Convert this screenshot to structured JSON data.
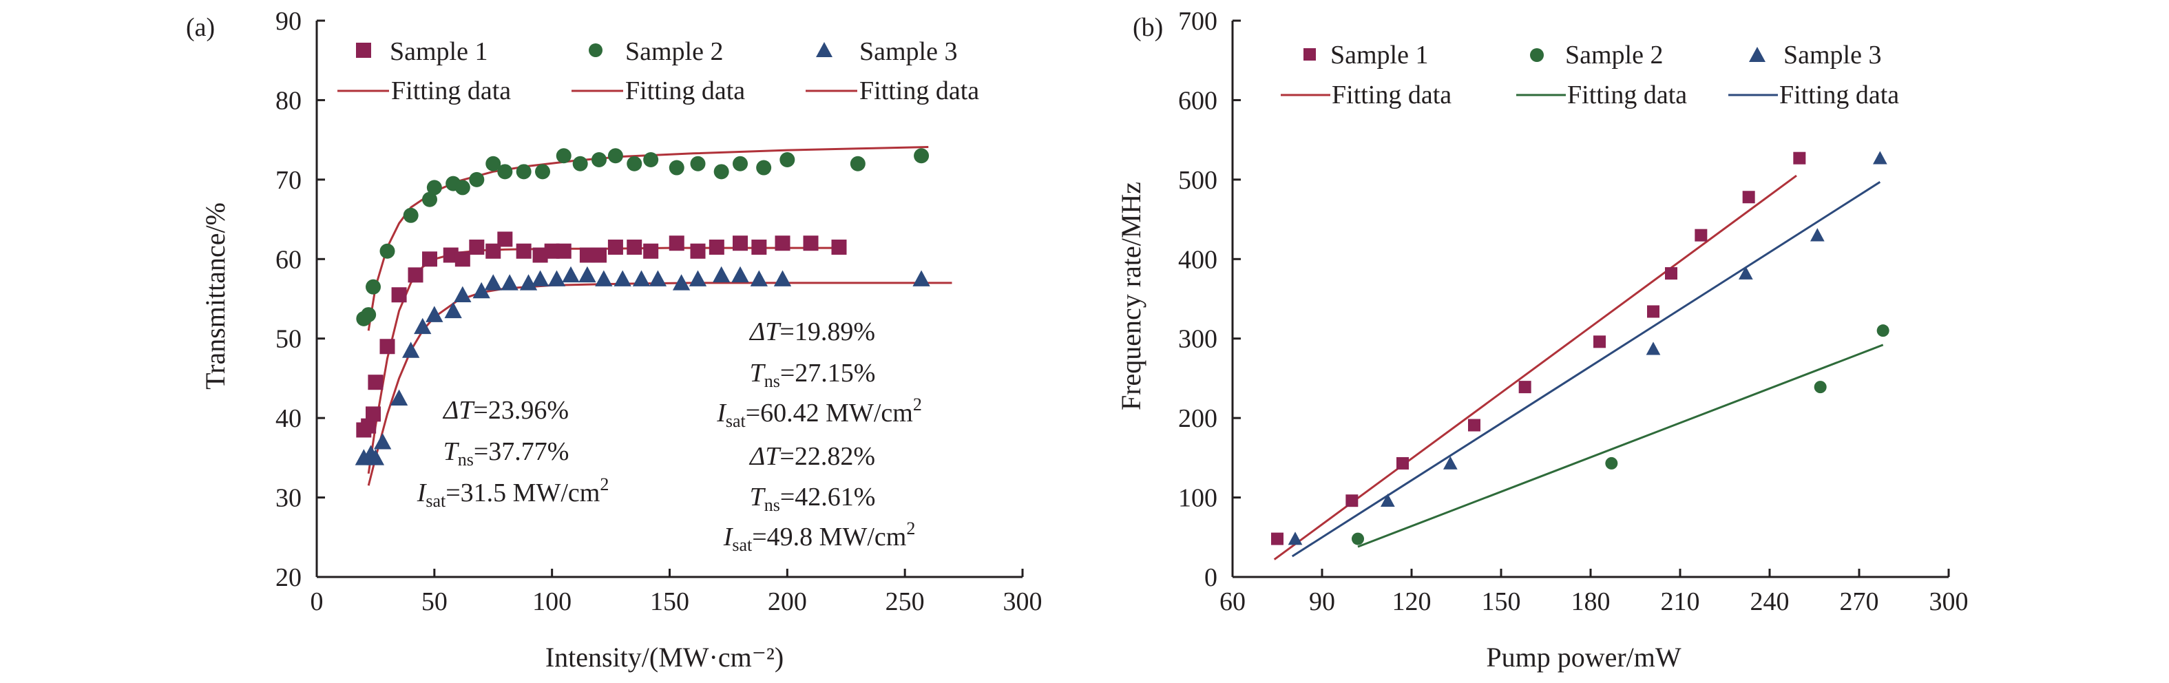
{
  "colors": {
    "axis": "#231f20",
    "sample1": "#8b2252",
    "sample2": "#2e6b3a",
    "sample3": "#2c4a7c",
    "fit_red": "#b0323a",
    "fit_green": "#2e6b3a",
    "fit_blue": "#2c4a7c"
  },
  "chart_data": [
    {
      "panel_label": "(a)",
      "type": "scatter",
      "xlabel": "Intensity/(MW·cm⁻²)",
      "ylabel": "Transmittance/%",
      "xlim": [
        0,
        300
      ],
      "ylim": [
        20,
        90
      ],
      "xticks": [
        0,
        50,
        100,
        150,
        200,
        250,
        300
      ],
      "yticks": [
        20,
        30,
        40,
        50,
        60,
        70,
        80,
        90
      ],
      "grid": false,
      "legend_position": "top",
      "legend": [
        {
          "label": "Sample 1",
          "marker": "square",
          "color": "sample1"
        },
        {
          "label": "Sample 2",
          "marker": "circle",
          "color": "sample2"
        },
        {
          "label": "Sample 3",
          "marker": "triangle",
          "color": "sample3"
        },
        {
          "label": "Fitting data",
          "marker": "line",
          "color": "fit_red"
        },
        {
          "label": "Fitting data",
          "marker": "line",
          "color": "fit_red"
        },
        {
          "label": "Fitting data",
          "marker": "line",
          "color": "fit_red"
        }
      ],
      "series": [
        {
          "name": "Sample 1",
          "marker": "square",
          "color": "sample1",
          "x": [
            20,
            22,
            24,
            25,
            30,
            35,
            42,
            48,
            57,
            62,
            68,
            75,
            80,
            88,
            95,
            100,
            105,
            115,
            120,
            127,
            135,
            142,
            153,
            162,
            170,
            180,
            188,
            198,
            210,
            222
          ],
          "y": [
            38.5,
            39,
            40.5,
            44.5,
            49,
            55.5,
            58,
            60,
            60.5,
            60,
            61.5,
            61,
            62.5,
            61,
            60.5,
            61,
            61,
            60.5,
            60.5,
            61.5,
            61.5,
            61,
            62,
            61,
            61.5,
            62,
            61.5,
            62,
            62,
            61.5
          ]
        },
        {
          "name": "Sample 2",
          "marker": "circle",
          "color": "sample2",
          "x": [
            20,
            22,
            24,
            30,
            40,
            48,
            50,
            58,
            62,
            68,
            75,
            80,
            88,
            96,
            105,
            112,
            120,
            127,
            135,
            142,
            153,
            162,
            172,
            180,
            190,
            200,
            230,
            257
          ],
          "y": [
            52.5,
            53,
            56.5,
            61,
            65.5,
            67.5,
            69,
            69.5,
            69,
            70,
            72,
            71,
            71,
            71,
            73,
            72,
            72.5,
            73,
            72,
            72.5,
            71.5,
            72,
            71,
            72,
            71.5,
            72.5,
            72,
            73
          ]
        },
        {
          "name": "Sample 3",
          "marker": "triangle",
          "color": "sample3",
          "x": [
            20,
            23,
            25,
            28,
            35,
            40,
            45,
            50,
            58,
            62,
            70,
            75,
            82,
            90,
            95,
            102,
            108,
            115,
            122,
            130,
            138,
            145,
            155,
            162,
            172,
            180,
            188,
            198,
            257
          ],
          "y": [
            35,
            35.5,
            35,
            37,
            42.5,
            48.5,
            51.5,
            53,
            53.5,
            55.5,
            56,
            57,
            57,
            57,
            57.5,
            57.5,
            58,
            58,
            57.5,
            57.5,
            57.5,
            57.5,
            57,
            57.5,
            58,
            58,
            57.5,
            57.5,
            57.5
          ]
        }
      ],
      "fits": [
        {
          "color": "fit_red",
          "x": [
            22,
            25,
            30,
            35,
            40,
            45,
            50,
            60,
            70,
            80,
            100,
            120,
            150,
            180,
            210,
            225
          ],
          "y": [
            33,
            39,
            47.5,
            53.5,
            57,
            59,
            60,
            60.8,
            61.1,
            61.2,
            61.3,
            61.3,
            61.4,
            61.4,
            61.4,
            61.4
          ]
        },
        {
          "color": "fit_red",
          "x": [
            22,
            25,
            30,
            35,
            40,
            50,
            60,
            75,
            90,
            110,
            130,
            160,
            200,
            230,
            260
          ],
          "y": [
            51,
            56.5,
            61.5,
            64.5,
            66.5,
            68.5,
            69.8,
            71,
            71.7,
            72.4,
            72.9,
            73.3,
            73.7,
            73.9,
            74.1
          ]
        },
        {
          "color": "fit_red",
          "x": [
            22,
            25,
            30,
            35,
            40,
            45,
            50,
            60,
            70,
            80,
            100,
            130,
            160,
            200,
            240,
            270
          ],
          "y": [
            31.5,
            35,
            40.5,
            45,
            48.5,
            51,
            52.7,
            54.8,
            55.8,
            56.3,
            56.7,
            56.9,
            57,
            57,
            57,
            57
          ]
        }
      ],
      "annotations": [
        {
          "color": "fit_red",
          "lines": [
            {
              "italic": "Δ",
              "var": "T",
              "text": "=23.96%"
            },
            {
              "var": "T",
              "sub": "ns",
              "text": "=37.77%"
            },
            {
              "var": "I",
              "sub": "sat",
              "text": "=31.5 MW/cm",
              "sup": "2"
            }
          ]
        },
        {
          "color": "fit_green",
          "lines": [
            {
              "italic": "Δ",
              "var": "T",
              "text": "=19.89%"
            },
            {
              "var": "T",
              "sub": "ns",
              "text": "=27.15%"
            },
            {
              "var": "I",
              "sub": "sat",
              "text": "=60.42 MW/cm",
              "sup": "2"
            }
          ]
        },
        {
          "color": "fit_blue",
          "lines": [
            {
              "italic": "Δ",
              "var": "T",
              "text": "=22.82%"
            },
            {
              "var": "T",
              "sub": "ns",
              "text": "=42.61%"
            },
            {
              "var": "I",
              "sub": "sat",
              "text": "=49.8 MW/cm",
              "sup": "2"
            }
          ]
        }
      ]
    },
    {
      "panel_label": "(b)",
      "type": "scatter",
      "xlabel": "Pump power/mW",
      "ylabel": "Frequency rate/MHz",
      "xlim": [
        60,
        300
      ],
      "ylim": [
        0,
        700
      ],
      "xticks": [
        60,
        90,
        120,
        150,
        180,
        210,
        240,
        270,
        300
      ],
      "yticks": [
        0,
        100,
        200,
        300,
        400,
        500,
        600,
        700
      ],
      "grid": false,
      "legend_position": "top",
      "legend": [
        {
          "label": "Sample 1",
          "marker": "square",
          "color": "sample1"
        },
        {
          "label": "Sample 2",
          "marker": "circle",
          "color": "sample2"
        },
        {
          "label": "Sample 3",
          "marker": "triangle",
          "color": "sample3"
        },
        {
          "label": "Fitting data",
          "marker": "line",
          "color": "fit_red"
        },
        {
          "label": "Fitting data",
          "marker": "line",
          "color": "fit_green"
        },
        {
          "label": "Fitting data",
          "marker": "line",
          "color": "fit_blue"
        }
      ],
      "series": [
        {
          "name": "Sample 1",
          "marker": "square",
          "color": "sample1",
          "x": [
            75,
            100,
            117,
            141,
            158,
            183,
            201,
            207,
            217,
            233,
            250
          ],
          "y": [
            48,
            96,
            143,
            191,
            239,
            296,
            334,
            382,
            430,
            478,
            527
          ]
        },
        {
          "name": "Sample 2",
          "marker": "circle",
          "color": "sample2",
          "x": [
            102,
            187,
            257,
            278
          ],
          "y": [
            48,
            143,
            239,
            310
          ]
        },
        {
          "name": "Sample 3",
          "marker": "triangle",
          "color": "sample3",
          "x": [
            81,
            112,
            133,
            201,
            232,
            256,
            277
          ],
          "y": [
            48,
            96,
            143,
            287,
            382,
            430,
            527
          ]
        }
      ],
      "fits": [
        {
          "color": "fit_red",
          "x": [
            74,
            249
          ],
          "y": [
            22,
            505
          ]
        },
        {
          "color": "fit_green",
          "x": [
            102,
            278
          ],
          "y": [
            38,
            292
          ]
        },
        {
          "color": "fit_blue",
          "x": [
            80,
            277
          ],
          "y": [
            26,
            497
          ]
        }
      ]
    }
  ]
}
